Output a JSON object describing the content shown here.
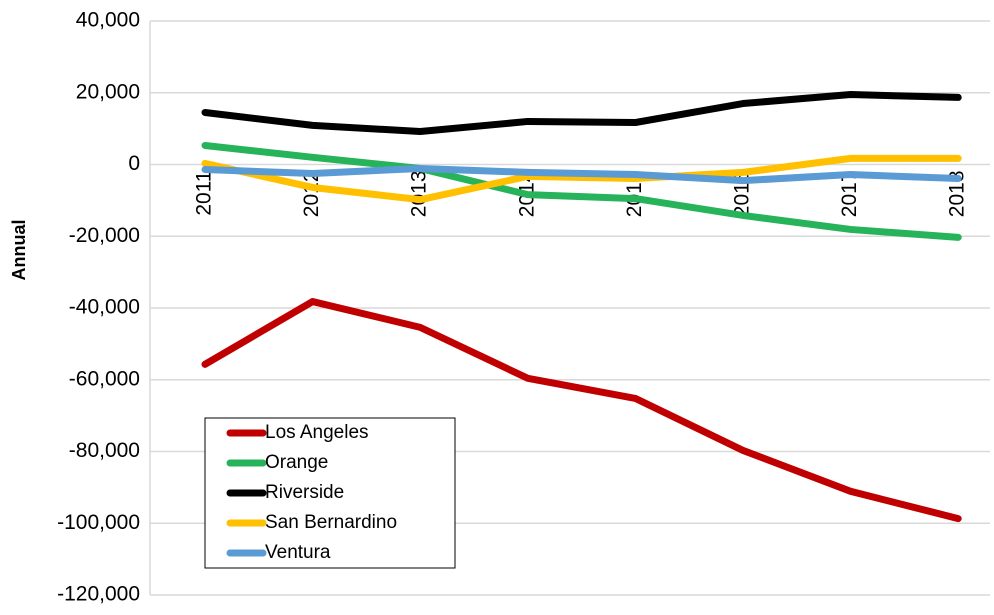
{
  "chart_data": {
    "type": "line",
    "y_label": "Annual",
    "categories": [
      "2011",
      "2012",
      "2013",
      "2014",
      "2015",
      "2016",
      "2017",
      "2018"
    ],
    "series": [
      {
        "name": "Los Angeles",
        "color": "#c00000",
        "values": [
          -55700,
          -38200,
          -45400,
          -59600,
          -65200,
          -79700,
          -91100,
          -98700
        ]
      },
      {
        "name": "Orange",
        "color": "#27b35a",
        "values": [
          5300,
          2000,
          -1100,
          -8400,
          -9500,
          -14200,
          -18100,
          -20300
        ]
      },
      {
        "name": "Riverside",
        "color": "#000000",
        "values": [
          14500,
          10900,
          9200,
          12000,
          11700,
          17000,
          19500,
          18700
        ]
      },
      {
        "name": "San Bernardino",
        "color": "#ffc000",
        "values": [
          300,
          -6400,
          -9800,
          -3300,
          -3900,
          -2200,
          1700,
          1700
        ]
      },
      {
        "name": "Ventura",
        "color": "#5b9bd5",
        "values": [
          -1400,
          -2500,
          -1100,
          -2200,
          -2800,
          -4500,
          -2800,
          -3900
        ]
      }
    ],
    "ylim": [
      -120000,
      40000
    ],
    "yticks": [
      {
        "value": -120000,
        "label": "-120,000"
      },
      {
        "value": -100000,
        "label": "-100,000"
      },
      {
        "value": -80000,
        "label": "-80,000"
      },
      {
        "value": -60000,
        "label": "-60,000"
      },
      {
        "value": -40000,
        "label": "-40,000"
      },
      {
        "value": -20000,
        "label": "-20,000"
      },
      0,
      {
        "value": 20000,
        "label": "20,000"
      },
      {
        "value": 40000,
        "label": "40,000"
      }
    ],
    "grid": true,
    "legend": "lower left"
  }
}
